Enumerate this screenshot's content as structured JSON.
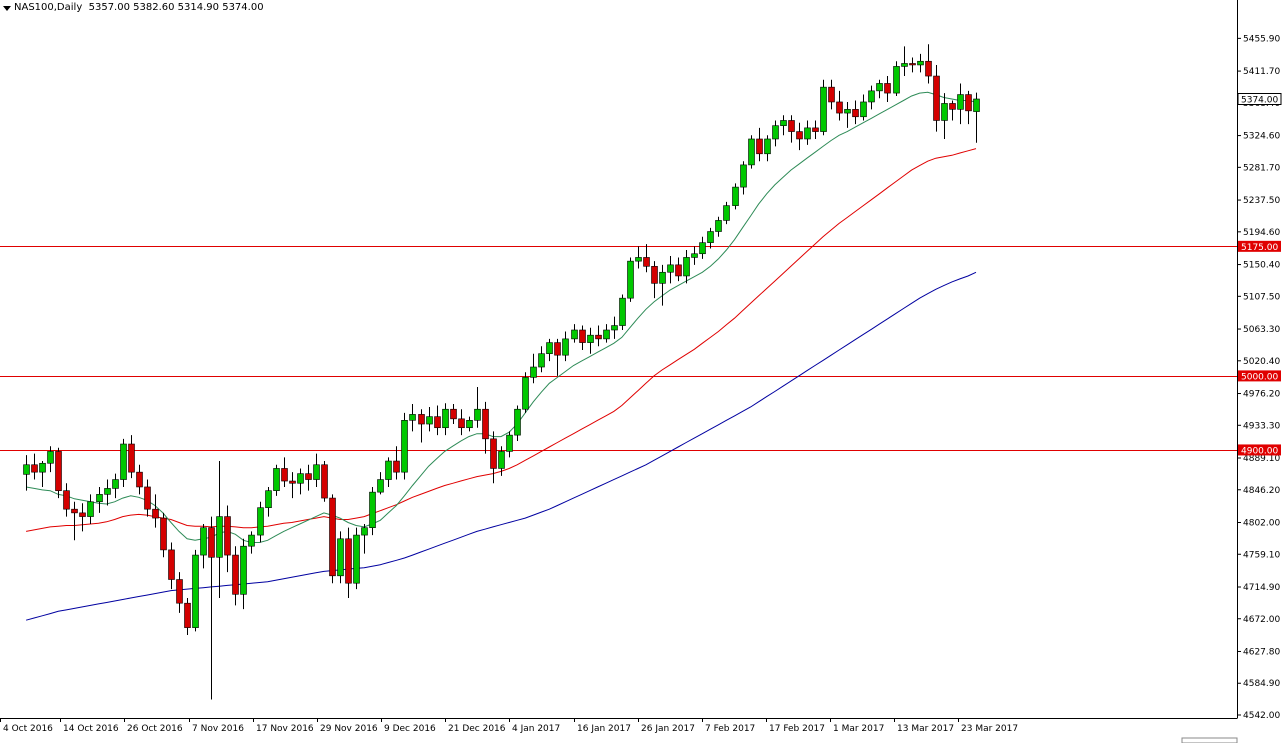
{
  "header": {
    "symbol": "NAS100,Daily",
    "ohlc": "5357.00 5382.60 5314.90 5374.00"
  },
  "colors": {
    "bull": "#00c800",
    "bear": "#d40000",
    "ma_short": "#2e8b57",
    "ma_mid": "#e00000",
    "ma_long": "#0000a0",
    "level_line": "#e00000",
    "axis": "#000000"
  },
  "chart_data": {
    "type": "candlestick",
    "title": "NAS100,Daily",
    "ylim": [
      4542.0,
      5478.0
    ],
    "y_ticks": [
      "5455.90",
      "5411.70",
      "5368.40",
      "5324.60",
      "5281.70",
      "5237.50",
      "5194.60",
      "5150.40",
      "5107.50",
      "5063.30",
      "5020.40",
      "4976.20",
      "4933.30",
      "4889.10",
      "4846.20",
      "4802.00",
      "4759.10",
      "4714.90",
      "4672.00",
      "4627.80",
      "4584.90",
      "4542.00"
    ],
    "x_ticks": [
      "4 Oct 2016",
      "14 Oct 2016",
      "26 Oct 2016",
      "7 Nov 2016",
      "17 Nov 2016",
      "29 Nov 2016",
      "9 Dec 2016",
      "21 Dec 2016",
      "4 Jan 2017",
      "16 Jan 2017",
      "26 Jan 2017",
      "7 Feb 2017",
      "17 Feb 2017",
      "1 Mar 2017",
      "13 Mar 2017",
      "23 Mar 2017"
    ],
    "levels": [
      {
        "value": 5175.0,
        "label": "5175.00"
      },
      {
        "value": 5000.0,
        "label": "5000.00"
      },
      {
        "value": 4900.0,
        "label": "4900.00"
      }
    ],
    "current_price": {
      "value": 5374.0,
      "label": "5374.00"
    },
    "candles": [
      [
        4867,
        4893,
        4845,
        4880
      ],
      [
        4880,
        4895,
        4860,
        4870
      ],
      [
        4870,
        4885,
        4850,
        4882
      ],
      [
        4882,
        4905,
        4870,
        4898
      ],
      [
        4898,
        4903,
        4835,
        4845
      ],
      [
        4845,
        4855,
        4810,
        4820
      ],
      [
        4820,
        4830,
        4778,
        4815
      ],
      [
        4815,
        4828,
        4790,
        4810
      ],
      [
        4810,
        4840,
        4800,
        4830
      ],
      [
        4830,
        4850,
        4815,
        4840
      ],
      [
        4840,
        4860,
        4825,
        4848
      ],
      [
        4848,
        4868,
        4835,
        4860
      ],
      [
        4860,
        4915,
        4850,
        4908
      ],
      [
        4908,
        4920,
        4862,
        4870
      ],
      [
        4870,
        4880,
        4840,
        4850
      ],
      [
        4850,
        4860,
        4810,
        4820
      ],
      [
        4820,
        4840,
        4795,
        4808
      ],
      [
        4808,
        4815,
        4755,
        4765
      ],
      [
        4765,
        4775,
        4712,
        4725
      ],
      [
        4725,
        4735,
        4680,
        4693
      ],
      [
        4693,
        4700,
        4650,
        4660
      ],
      [
        4660,
        4765,
        4655,
        4758
      ],
      [
        4758,
        4800,
        4740,
        4795
      ],
      [
        4795,
        4810,
        4563,
        4755
      ],
      [
        4755,
        4885,
        4700,
        4810
      ],
      [
        4810,
        4825,
        4735,
        4758
      ],
      [
        4758,
        4770,
        4690,
        4705
      ],
      [
        4705,
        4780,
        4685,
        4770
      ],
      [
        4770,
        4790,
        4760,
        4785
      ],
      [
        4785,
        4830,
        4775,
        4822
      ],
      [
        4822,
        4850,
        4810,
        4845
      ],
      [
        4845,
        4880,
        4838,
        4875
      ],
      [
        4875,
        4890,
        4850,
        4858
      ],
      [
        4858,
        4870,
        4835,
        4855
      ],
      [
        4855,
        4875,
        4840,
        4868
      ],
      [
        4868,
        4880,
        4845,
        4860
      ],
      [
        4860,
        4895,
        4850,
        4880
      ],
      [
        4880,
        4885,
        4830,
        4835
      ],
      [
        4835,
        4840,
        4720,
        4730
      ],
      [
        4730,
        4790,
        4720,
        4780
      ],
      [
        4780,
        4795,
        4700,
        4720
      ],
      [
        4720,
        4795,
        4712,
        4785
      ],
      [
        4785,
        4800,
        4760,
        4795
      ],
      [
        4795,
        4850,
        4785,
        4843
      ],
      [
        4843,
        4870,
        4840,
        4860
      ],
      [
        4860,
        4890,
        4850,
        4885
      ],
      [
        4885,
        4905,
        4860,
        4870
      ],
      [
        4870,
        4950,
        4860,
        4940
      ],
      [
        4940,
        4962,
        4925,
        4948
      ],
      [
        4948,
        4955,
        4910,
        4935
      ],
      [
        4935,
        4958,
        4925,
        4945
      ],
      [
        4945,
        4960,
        4920,
        4930
      ],
      [
        4930,
        4963,
        4920,
        4955
      ],
      [
        4955,
        4962,
        4935,
        4942
      ],
      [
        4942,
        4955,
        4920,
        4930
      ],
      [
        4930,
        4945,
        4925,
        4940
      ],
      [
        4940,
        4985,
        4930,
        4955
      ],
      [
        4955,
        4965,
        4895,
        4915
      ],
      [
        4915,
        4925,
        4855,
        4875
      ],
      [
        4875,
        4905,
        4865,
        4898
      ],
      [
        4898,
        4925,
        4890,
        4920
      ],
      [
        4920,
        4960,
        4912,
        4955
      ],
      [
        4955,
        5005,
        4950,
        4998
      ],
      [
        4998,
        5030,
        4990,
        5012
      ],
      [
        5012,
        5040,
        5005,
        5030
      ],
      [
        5030,
        5050,
        5020,
        5045
      ],
      [
        5045,
        5050,
        5000,
        5028
      ],
      [
        5028,
        5060,
        5020,
        5050
      ],
      [
        5050,
        5070,
        5045,
        5062
      ],
      [
        5062,
        5068,
        5035,
        5045
      ],
      [
        5045,
        5065,
        5030,
        5055
      ],
      [
        5055,
        5068,
        5040,
        5050
      ],
      [
        5050,
        5070,
        5045,
        5062
      ],
      [
        5062,
        5080,
        5050,
        5068
      ],
      [
        5068,
        5110,
        5062,
        5105
      ],
      [
        5105,
        5160,
        5100,
        5155
      ],
      [
        5155,
        5175,
        5145,
        5160
      ],
      [
        5160,
        5178,
        5140,
        5148
      ],
      [
        5148,
        5155,
        5105,
        5125
      ],
      [
        5125,
        5150,
        5095,
        5140
      ],
      [
        5140,
        5162,
        5125,
        5150
      ],
      [
        5150,
        5160,
        5128,
        5135
      ],
      [
        5135,
        5170,
        5125,
        5160
      ],
      [
        5160,
        5175,
        5150,
        5165
      ],
      [
        5165,
        5188,
        5158,
        5180
      ],
      [
        5180,
        5200,
        5172,
        5195
      ],
      [
        5195,
        5215,
        5188,
        5210
      ],
      [
        5210,
        5235,
        5205,
        5230
      ],
      [
        5230,
        5260,
        5225,
        5255
      ],
      [
        5255,
        5290,
        5245,
        5285
      ],
      [
        5285,
        5325,
        5280,
        5320
      ],
      [
        5320,
        5335,
        5290,
        5300
      ],
      [
        5300,
        5325,
        5290,
        5320
      ],
      [
        5320,
        5345,
        5310,
        5338
      ],
      [
        5338,
        5352,
        5325,
        5345
      ],
      [
        5345,
        5352,
        5315,
        5330
      ],
      [
        5330,
        5342,
        5305,
        5320
      ],
      [
        5320,
        5345,
        5312,
        5335
      ],
      [
        5335,
        5345,
        5320,
        5330
      ],
      [
        5330,
        5400,
        5325,
        5390
      ],
      [
        5390,
        5400,
        5360,
        5370
      ],
      [
        5370,
        5385,
        5345,
        5355
      ],
      [
        5355,
        5370,
        5335,
        5360
      ],
      [
        5360,
        5372,
        5340,
        5350
      ],
      [
        5350,
        5380,
        5345,
        5370
      ],
      [
        5370,
        5392,
        5360,
        5385
      ],
      [
        5385,
        5400,
        5375,
        5395
      ],
      [
        5395,
        5405,
        5370,
        5382
      ],
      [
        5382,
        5425,
        5378,
        5418
      ],
      [
        5418,
        5445,
        5405,
        5422
      ],
      [
        5422,
        5430,
        5410,
        5420
      ],
      [
        5420,
        5435,
        5410,
        5425
      ],
      [
        5425,
        5448,
        5395,
        5405
      ],
      [
        5405,
        5420,
        5330,
        5345
      ],
      [
        5345,
        5382,
        5320,
        5368
      ],
      [
        5368,
        5372,
        5345,
        5360
      ],
      [
        5360,
        5395,
        5340,
        5380
      ],
      [
        5380,
        5385,
        5340,
        5358
      ],
      [
        5357,
        5382.6,
        5314.9,
        5374
      ]
    ],
    "ma_short": [
      4850,
      4848,
      4846,
      4845,
      4840,
      4838,
      4834,
      4832,
      4830,
      4828,
      4827,
      4830,
      4835,
      4838,
      4836,
      4832,
      4825,
      4815,
      4802,
      4790,
      4780,
      4778,
      4780,
      4782,
      4788,
      4790,
      4786,
      4778,
      4775,
      4775,
      4778,
      4784,
      4790,
      4795,
      4800,
      4805,
      4810,
      4815,
      4812,
      4808,
      4802,
      4798,
      4796,
      4800,
      4805,
      4815,
      4825,
      4838,
      4852,
      4865,
      4878,
      4888,
      4898,
      4905,
      4912,
      4918,
      4922,
      4922,
      4918,
      4918,
      4924,
      4935,
      4950,
      4965,
      4978,
      4990,
      4998,
      5006,
      5014,
      5020,
      5026,
      5032,
      5038,
      5044,
      5052,
      5065,
      5078,
      5090,
      5100,
      5108,
      5116,
      5122,
      5128,
      5134,
      5140,
      5148,
      5158,
      5170,
      5184,
      5200,
      5216,
      5232,
      5246,
      5258,
      5268,
      5278,
      5286,
      5294,
      5302,
      5310,
      5318,
      5325,
      5330,
      5336,
      5342,
      5348,
      5354,
      5360,
      5366,
      5372,
      5378,
      5382,
      5383,
      5380,
      5376,
      5374,
      5372,
      5372,
      5370
    ],
    "ma_mid": [
      4790,
      4792,
      4794,
      4796,
      4797,
      4798,
      4798,
      4799,
      4800,
      4801,
      4803,
      4806,
      4810,
      4812,
      4813,
      4812,
      4810,
      4808,
      4806,
      4802,
      4798,
      4797,
      4797,
      4796,
      4797,
      4797,
      4796,
      4795,
      4795,
      4796,
      4797,
      4799,
      4801,
      4802,
      4804,
      4806,
      4808,
      4810,
      4808,
      4806,
      4806,
      4808,
      4810,
      4814,
      4818,
      4822,
      4826,
      4831,
      4836,
      4840,
      4844,
      4848,
      4852,
      4855,
      4858,
      4861,
      4864,
      4866,
      4868,
      4871,
      4875,
      4880,
      4886,
      4892,
      4898,
      4904,
      4910,
      4916,
      4922,
      4928,
      4934,
      4940,
      4946,
      4952,
      4960,
      4970,
      4980,
      4990,
      5000,
      5008,
      5015,
      5022,
      5029,
      5036,
      5044,
      5052,
      5060,
      5069,
      5078,
      5088,
      5098,
      5108,
      5118,
      5128,
      5138,
      5148,
      5158,
      5168,
      5178,
      5188,
      5197,
      5206,
      5214,
      5222,
      5230,
      5238,
      5246,
      5254,
      5262,
      5270,
      5278,
      5284,
      5290,
      5294,
      5296,
      5298,
      5301,
      5304,
      5307
    ],
    "ma_long": [
      4670,
      4673,
      4676,
      4679,
      4682,
      4684,
      4686,
      4688,
      4690,
      4692,
      4694,
      4696,
      4698,
      4700,
      4702,
      4704,
      4706,
      4708,
      4710,
      4711,
      4712,
      4713,
      4714,
      4715,
      4716,
      4717,
      4718,
      4719,
      4720,
      4721,
      4722,
      4724,
      4726,
      4728,
      4730,
      4732,
      4734,
      4736,
      4737,
      4738,
      4739,
      4740,
      4741,
      4743,
      4745,
      4748,
      4751,
      4754,
      4758,
      4762,
      4766,
      4770,
      4774,
      4778,
      4782,
      4786,
      4790,
      4793,
      4796,
      4799,
      4802,
      4805,
      4808,
      4812,
      4816,
      4820,
      4825,
      4830,
      4835,
      4840,
      4845,
      4850,
      4855,
      4860,
      4865,
      4870,
      4875,
      4880,
      4886,
      4892,
      4898,
      4904,
      4910,
      4916,
      4922,
      4928,
      4934,
      4940,
      4946,
      4952,
      4958,
      4965,
      4972,
      4979,
      4986,
      4993,
      5000,
      5007,
      5014,
      5021,
      5028,
      5035,
      5042,
      5049,
      5056,
      5063,
      5070,
      5077,
      5084,
      5091,
      5098,
      5105,
      5111,
      5117,
      5122,
      5127,
      5131,
      5135,
      5140
    ]
  }
}
